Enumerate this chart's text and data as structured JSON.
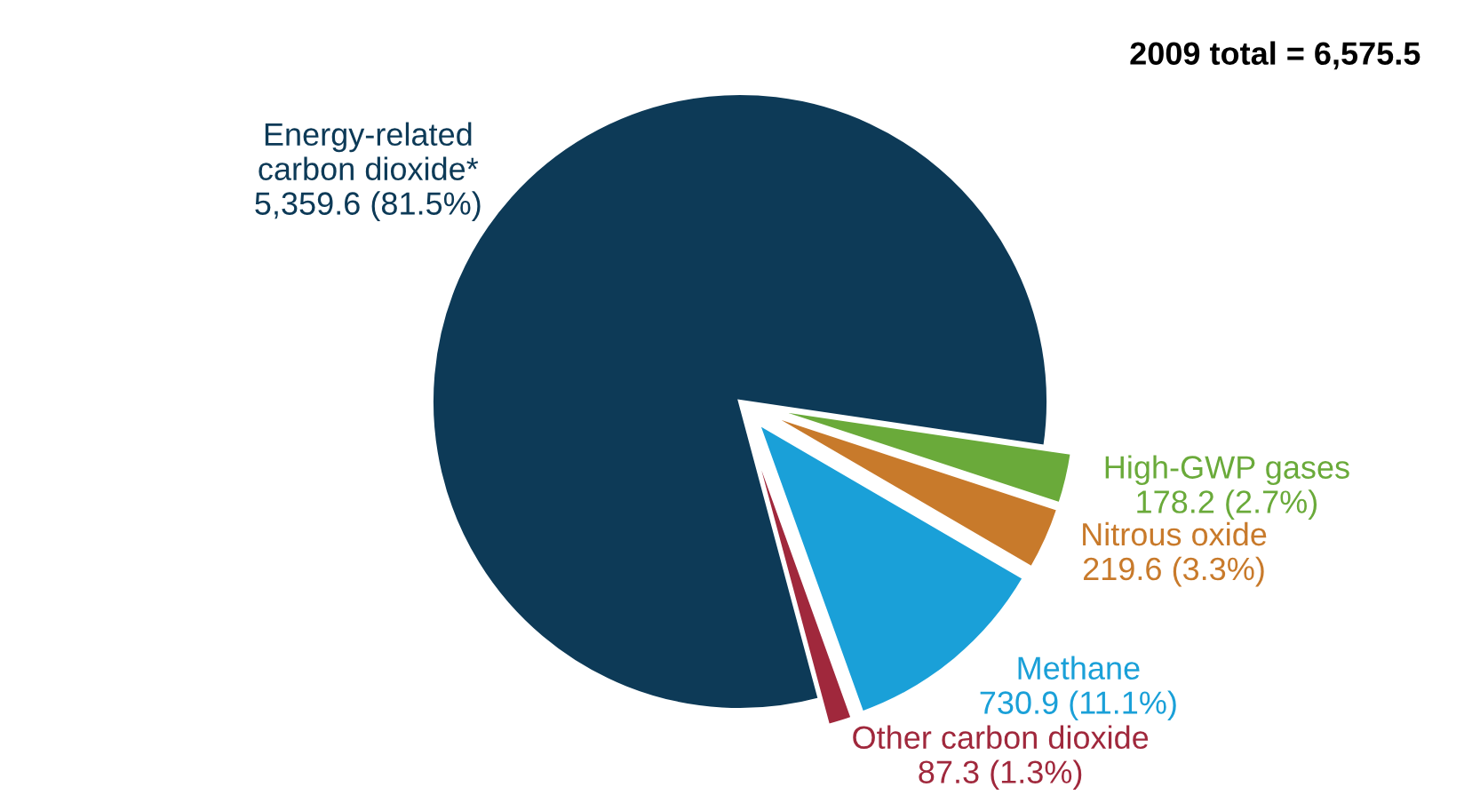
{
  "chart_data": {
    "type": "pie",
    "title": "2009 total = 6,575.5",
    "categories": [
      "Energy-related\ncarbon dioxide*",
      "High-GWP gases",
      "Nitrous oxide",
      "Methane",
      "Other carbon dioxide"
    ],
    "values": [
      5359.6,
      178.2,
      219.6,
      730.9,
      87.3
    ],
    "value_labels": [
      "5,359.6 (81.5%)",
      "178.2 (2.7%)",
      "219.6 (3.3%)",
      "730.9 (11.1%)",
      "87.3 (1.3%)"
    ],
    "colors": [
      "#0d3a57",
      "#6aaa3a",
      "#c87a2b",
      "#1aa0d8",
      "#a0283c"
    ]
  }
}
